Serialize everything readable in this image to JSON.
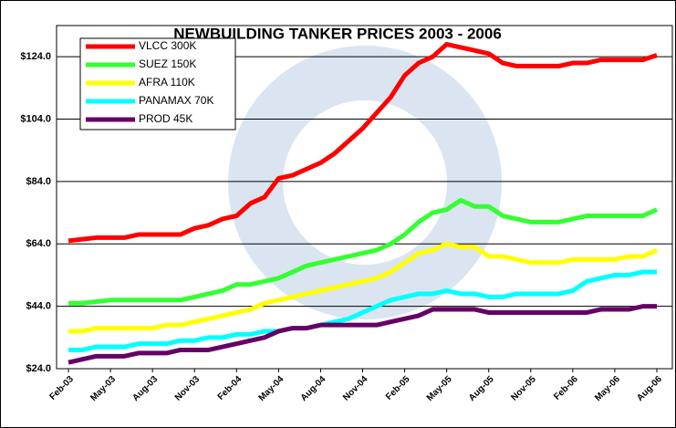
{
  "chart_data": {
    "type": "line",
    "title": "NEWBUILDING TANKER PRICES 2003 - 2006",
    "categories": [
      "Feb-03",
      null,
      null,
      "May-03",
      null,
      null,
      "Aug-03",
      null,
      null,
      "Nov-03",
      null,
      null,
      "Feb-04",
      null,
      null,
      "May-04",
      null,
      null,
      "Aug-04",
      null,
      null,
      "Nov-04",
      null,
      null,
      "Feb-05",
      null,
      null,
      "May-05",
      null,
      null,
      "Aug-05",
      null,
      null,
      "Nov-05",
      null,
      null,
      "Feb-06",
      null,
      null,
      "May-06",
      null,
      null,
      "Aug-06"
    ],
    "series": [
      {
        "name": "VLCC 300K",
        "color": "#ff0000",
        "values": [
          65,
          65.5,
          66,
          66,
          66,
          67,
          67,
          67,
          67,
          69,
          70,
          72,
          73,
          77,
          79,
          85,
          86,
          88,
          90,
          93,
          97,
          101,
          106,
          111,
          118,
          122,
          124,
          128,
          127,
          126,
          125,
          122,
          121,
          121,
          121,
          121,
          122,
          122,
          123,
          123,
          123,
          123,
          124.5
        ]
      },
      {
        "name": "SUEZ 150K",
        "color": "#33ff33",
        "values": [
          45,
          45,
          45.5,
          46,
          46,
          46,
          46,
          46,
          46,
          47,
          48,
          49,
          51,
          51,
          52,
          53,
          55,
          57,
          58,
          59,
          60,
          61,
          62,
          64,
          67,
          71,
          74,
          75,
          78,
          76,
          76,
          73,
          72,
          71,
          71,
          71,
          72,
          73,
          73,
          73,
          73,
          73,
          75
        ]
      },
      {
        "name": "AFRA 110K",
        "color": "#ffff00",
        "values": [
          36,
          36,
          37,
          37,
          37,
          37,
          37,
          38,
          38,
          39,
          40,
          41,
          42,
          43,
          45,
          46,
          47,
          48,
          49,
          50,
          51,
          52,
          53,
          55,
          58,
          61,
          62,
          64,
          63,
          63,
          60,
          60,
          59,
          58,
          58,
          58,
          59,
          59,
          59,
          59,
          60,
          60,
          62
        ]
      },
      {
        "name": "PANAMAX 70K",
        "color": "#00ffff",
        "values": [
          30,
          30,
          31,
          31,
          31,
          32,
          32,
          32,
          33,
          33,
          34,
          34,
          35,
          35,
          36,
          36,
          37,
          37,
          38,
          39,
          40,
          42,
          44,
          46,
          47,
          48,
          48,
          49,
          48,
          48,
          47,
          47,
          48,
          48,
          48,
          48,
          49,
          52,
          53,
          54,
          54,
          55,
          55
        ]
      },
      {
        "name": "PROD 45K",
        "color": "#660066",
        "values": [
          26,
          27,
          28,
          28,
          28,
          29,
          29,
          29,
          30,
          30,
          30,
          31,
          32,
          33,
          34,
          36,
          37,
          37,
          38,
          38,
          38,
          38,
          38,
          39,
          40,
          41,
          43,
          43,
          43,
          43,
          42,
          42,
          42,
          42,
          42,
          42,
          42,
          42,
          43,
          43,
          43,
          44,
          44
        ]
      }
    ],
    "ylim": [
      24,
      134
    ],
    "yticks": [
      {
        "value": 24,
        "label": "$24.0"
      },
      {
        "value": 44,
        "label": "$44.0"
      },
      {
        "value": 64,
        "label": "$64.0"
      },
      {
        "value": 84,
        "label": "$84.0"
      },
      {
        "value": 104,
        "label": "$104.0"
      },
      {
        "value": 124,
        "label": "$124.0"
      }
    ],
    "grid": true,
    "legend": "upper left"
  }
}
